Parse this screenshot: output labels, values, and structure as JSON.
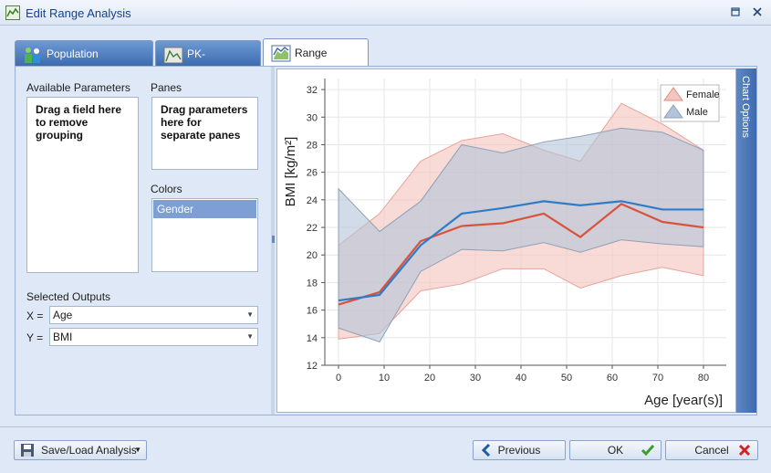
{
  "window": {
    "title": "Edit Range Analysis"
  },
  "tabs": [
    {
      "label": "Population Parameters",
      "icon": "population-icon"
    },
    {
      "label": "PK-Parameters",
      "icon": "pk-icon"
    },
    {
      "label": "Range Analysis",
      "icon": "range-chart-icon"
    }
  ],
  "left": {
    "available_label": "Available Parameters",
    "available_hint": "Drag a field here to remove grouping",
    "panes_label": "Panes",
    "panes_hint": "Drag parameters here for separate panes",
    "colors_label": "Colors",
    "colors_items": [
      "Gender"
    ],
    "outputs_label": "Selected Outputs",
    "x_label": "X =",
    "x_value": "Age",
    "y_label": "Y =",
    "y_value": "BMI"
  },
  "chart_options_label": "Chart Options",
  "buttons": {
    "save_load": "Save/Load Analysis",
    "previous": "Previous",
    "ok": "OK",
    "cancel": "Cancel"
  },
  "colors": {
    "female_line": "#d9533c",
    "female_band": "#f4c6c0",
    "male_line": "#2f7bc8",
    "male_band": "#b3c4d8",
    "overlap": "#cfcfcf"
  },
  "chart_data": {
    "type": "area",
    "xlabel": "Age [year(s)]",
    "ylabel": "BMI [kg/m²]",
    "xlim": [
      -3,
      85
    ],
    "ylim": [
      12,
      32.8
    ],
    "xticks": [
      0,
      10,
      20,
      30,
      40,
      50,
      60,
      70,
      80
    ],
    "yticks": [
      12,
      14,
      16,
      18,
      20,
      22,
      24,
      26,
      28,
      30,
      32
    ],
    "grid": true,
    "legend_position": "top-right",
    "x": [
      0,
      9,
      18,
      27,
      36,
      45,
      53,
      62,
      71,
      80
    ],
    "series": [
      {
        "name": "Female",
        "median": [
          16.4,
          17.3,
          21.0,
          22.1,
          22.3,
          23.0,
          21.3,
          23.7,
          22.4,
          22.0
        ],
        "lower": [
          13.9,
          14.3,
          17.4,
          17.9,
          19.0,
          19.0,
          17.6,
          18.5,
          19.1,
          18.5
        ],
        "upper": [
          20.7,
          23.0,
          26.8,
          28.3,
          28.8,
          27.6,
          26.8,
          31.0,
          29.5,
          27.6
        ]
      },
      {
        "name": "Male",
        "median": [
          16.7,
          17.1,
          20.7,
          23.0,
          23.4,
          23.9,
          23.6,
          23.9,
          23.3,
          23.3
        ],
        "lower": [
          14.7,
          13.7,
          18.8,
          20.4,
          20.3,
          20.9,
          20.2,
          21.1,
          20.8,
          20.6
        ],
        "upper": [
          24.8,
          21.7,
          23.9,
          28.0,
          27.4,
          28.2,
          28.6,
          29.2,
          28.9,
          27.6
        ]
      }
    ]
  }
}
